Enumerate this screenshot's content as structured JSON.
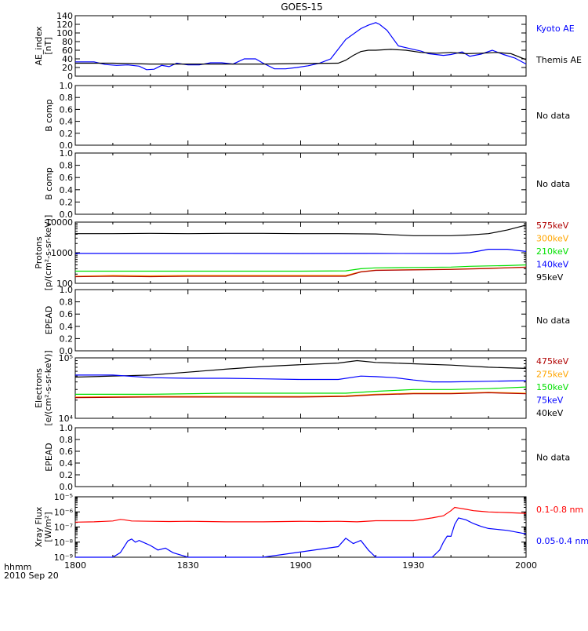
{
  "title": "GOES-15",
  "time_axis": {
    "ticks": [
      "1800",
      "1830",
      "1900",
      "1930",
      "2000"
    ],
    "corner_label_1": "hhmm",
    "corner_label_2": "2010 Sep 20"
  },
  "colors": {
    "black": "#000000",
    "blue": "#0000ff",
    "green": "#00e000",
    "orange": "#ffa500",
    "red": "#ff0000",
    "darkred": "#b00000"
  },
  "chart_data": [
    {
      "type": "line",
      "id": "ae",
      "ylabel_lines": [
        "AE_index",
        "[nT]"
      ],
      "yscale": "linear",
      "ylim": [
        0,
        140
      ],
      "yticks": [
        "0",
        "20",
        "40",
        "60",
        "80",
        "100",
        "120",
        "140"
      ],
      "ytick_values": [
        0,
        20,
        40,
        60,
        80,
        100,
        120,
        140
      ],
      "series": [
        {
          "name": "Kyoto AE",
          "color": "#0000ff",
          "x": [
            0,
            5,
            8,
            11,
            14,
            17,
            19,
            21,
            23,
            25,
            27,
            30,
            33,
            36,
            39,
            42,
            45,
            48,
            50,
            53,
            56,
            59,
            62,
            65,
            68,
            72,
            76,
            78,
            80,
            81,
            83,
            86,
            88,
            90,
            92,
            94,
            96,
            98,
            100,
            103,
            105,
            108,
            111,
            114,
            117,
            120
          ],
          "y": [
            33,
            33,
            27,
            25,
            26,
            23,
            15,
            16,
            25,
            22,
            30,
            26,
            26,
            31,
            31,
            28,
            40,
            40,
            30,
            17,
            17,
            20,
            24,
            30,
            40,
            85,
            110,
            118,
            124,
            120,
            106,
            70,
            66,
            62,
            58,
            52,
            50,
            48,
            50,
            56,
            46,
            51,
            60,
            50,
            42,
            28
          ]
        },
        {
          "name": "Themis AE",
          "color": "#000000",
          "x": [
            0,
            10,
            20,
            30,
            40,
            50,
            60,
            70,
            72,
            74,
            76,
            78,
            80,
            84,
            88,
            92,
            96,
            100,
            104,
            108,
            112,
            116,
            120
          ],
          "y": [
            30,
            30,
            28,
            28,
            28,
            28,
            29,
            30,
            37,
            48,
            57,
            60,
            60,
            62,
            60,
            55,
            53,
            55,
            52,
            53,
            55,
            52,
            38
          ]
        }
      ],
      "legend": [
        {
          "text": "Kyoto AE",
          "color": "#0000ff"
        },
        {
          "text": "Themis AE",
          "color": "#000000"
        }
      ]
    },
    {
      "type": "line",
      "id": "bcomp1",
      "ylabel_lines": [
        "B comp"
      ],
      "yscale": "linear",
      "ylim": [
        0,
        1
      ],
      "yticks": [
        "0.0",
        "0.2",
        "0.4",
        "0.6",
        "0.8",
        "1.0"
      ],
      "ytick_values": [
        0,
        0.2,
        0.4,
        0.6,
        0.8,
        1.0
      ],
      "series": [],
      "legend": [
        {
          "text": "No data",
          "color": "#000000"
        }
      ]
    },
    {
      "type": "line",
      "id": "bcomp2",
      "ylabel_lines": [
        "B comp"
      ],
      "yscale": "linear",
      "ylim": [
        0,
        1
      ],
      "yticks": [
        "0.0",
        "0.2",
        "0.4",
        "0.6",
        "0.8",
        "1.0"
      ],
      "ytick_values": [
        0,
        0.2,
        0.4,
        0.6,
        0.8,
        1.0
      ],
      "series": [],
      "legend": [
        {
          "text": "No data",
          "color": "#000000"
        }
      ]
    },
    {
      "type": "line",
      "id": "protons",
      "ylabel_lines": [
        "Protons",
        "[p/(cm²-s-sr-keV)]"
      ],
      "yscale": "log",
      "ylim": [
        100,
        10000
      ],
      "yticks": [
        "100",
        "1000",
        "10000"
      ],
      "ytick_values": [
        100,
        1000,
        10000
      ],
      "series": [
        {
          "name": "95keV",
          "color": "#000000",
          "x": [
            0,
            10,
            20,
            30,
            40,
            50,
            60,
            70,
            80,
            90,
            100,
            105,
            110,
            115,
            120
          ],
          "y": [
            4200,
            4200,
            4300,
            4200,
            4300,
            4300,
            4200,
            4200,
            4100,
            3600,
            3600,
            3800,
            4200,
            5500,
            8000
          ]
        },
        {
          "name": "140keV",
          "color": "#0000ff",
          "x": [
            0,
            20,
            40,
            60,
            80,
            100,
            105,
            110,
            115,
            120
          ],
          "y": [
            950,
            950,
            950,
            940,
            950,
            940,
            1000,
            1300,
            1300,
            1100
          ]
        },
        {
          "name": "210keV",
          "color": "#00e000",
          "x": [
            0,
            20,
            40,
            60,
            72,
            76,
            80,
            90,
            100,
            105,
            110,
            115,
            120
          ],
          "y": [
            250,
            250,
            250,
            250,
            255,
            300,
            320,
            330,
            340,
            360,
            370,
            380,
            400
          ]
        },
        {
          "name": "300keV",
          "color": "#ffa500",
          "x": [
            0,
            10,
            20,
            30,
            40,
            50,
            60,
            72,
            76,
            80,
            90,
            100,
            110,
            120
          ],
          "y": [
            170,
            180,
            175,
            180,
            180,
            180,
            180,
            180,
            240,
            270,
            280,
            290,
            310,
            340
          ]
        },
        {
          "name": "575keV",
          "color": "#b00000",
          "x": [
            0,
            10,
            20,
            30,
            40,
            50,
            60,
            72,
            76,
            80,
            90,
            100,
            110,
            120
          ],
          "y": [
            165,
            170,
            165,
            170,
            170,
            170,
            170,
            170,
            235,
            265,
            275,
            285,
            305,
            335
          ]
        }
      ],
      "legend": [
        {
          "text": "575keV",
          "color": "#b00000"
        },
        {
          "text": "300keV",
          "color": "#ffa500"
        },
        {
          "text": "210keV",
          "color": "#00e000"
        },
        {
          "text": "140keV",
          "color": "#0000ff"
        },
        {
          "text": "95keV",
          "color": "#000000"
        }
      ]
    },
    {
      "type": "line",
      "id": "epead1",
      "ylabel_lines": [
        "EPEAD"
      ],
      "yscale": "linear",
      "ylim": [
        0,
        1
      ],
      "yticks": [
        "0.0",
        "0.2",
        "0.4",
        "0.6",
        "0.8",
        "1.0"
      ],
      "ytick_values": [
        0,
        0.2,
        0.4,
        0.6,
        0.8,
        1.0
      ],
      "series": [],
      "legend": [
        {
          "text": "No data",
          "color": "#000000"
        }
      ]
    },
    {
      "type": "line",
      "id": "electrons",
      "ylabel_lines": [
        "Electrons",
        "[e/(cm²-s-sr-keV)]"
      ],
      "yscale": "log",
      "ylim": [
        10000,
        100000
      ],
      "yticks": [
        "10⁴",
        "10⁵"
      ],
      "ytick_values": [
        10000,
        100000
      ],
      "series": [
        {
          "name": "40keV",
          "color": "#000000",
          "x": [
            0,
            10,
            20,
            30,
            40,
            50,
            60,
            70,
            75,
            80,
            85,
            90,
            100,
            110,
            120
          ],
          "y": [
            48000,
            50000,
            52000,
            58000,
            65000,
            72000,
            77000,
            82000,
            90000,
            84000,
            82000,
            80000,
            76000,
            70000,
            67000
          ]
        },
        {
          "name": "75keV",
          "color": "#0000ff",
          "x": [
            0,
            10,
            20,
            30,
            40,
            50,
            60,
            70,
            76,
            80,
            85,
            90,
            95,
            100,
            110,
            120
          ],
          "y": [
            52000,
            52000,
            47000,
            46000,
            46000,
            45000,
            44000,
            44000,
            50000,
            49000,
            47000,
            43000,
            40000,
            40000,
            41000,
            42000
          ]
        },
        {
          "name": "150keV",
          "color": "#00e000",
          "x": [
            0,
            20,
            40,
            60,
            72,
            80,
            90,
            100,
            110,
            120
          ],
          "y": [
            25000,
            25000,
            26000,
            26000,
            26000,
            28000,
            30000,
            30000,
            31000,
            33000
          ]
        },
        {
          "name": "275keV",
          "color": "#ffa500",
          "x": [
            0,
            20,
            40,
            60,
            72,
            80,
            90,
            100,
            110,
            120
          ],
          "y": [
            22500,
            23000,
            23000,
            23000,
            23500,
            25000,
            26000,
            26000,
            27000,
            26000
          ]
        },
        {
          "name": "475keV",
          "color": "#b00000",
          "x": [
            0,
            20,
            40,
            60,
            72,
            80,
            90,
            100,
            110,
            120
          ],
          "y": [
            22000,
            22500,
            22500,
            22500,
            23000,
            24500,
            25500,
            25500,
            26500,
            25500
          ]
        }
      ],
      "legend": [
        {
          "text": "475keV",
          "color": "#b00000"
        },
        {
          "text": "275keV",
          "color": "#ffa500"
        },
        {
          "text": "150keV",
          "color": "#00e000"
        },
        {
          "text": "75keV",
          "color": "#0000ff"
        },
        {
          "text": "40keV",
          "color": "#000000"
        }
      ]
    },
    {
      "type": "line",
      "id": "epead2",
      "ylabel_lines": [
        "EPEAD"
      ],
      "yscale": "linear",
      "ylim": [
        0,
        1
      ],
      "yticks": [
        "0.0",
        "0.2",
        "0.4",
        "0.6",
        "0.8",
        "1.0"
      ],
      "ytick_values": [
        0,
        0.2,
        0.4,
        0.6,
        0.8,
        1.0
      ],
      "series": [],
      "legend": [
        {
          "text": "No data",
          "color": "#000000"
        }
      ]
    },
    {
      "type": "line",
      "id": "xray",
      "ylabel_lines": [
        "Xray Flux",
        "[W/m²]"
      ],
      "yscale": "log",
      "ylim": [
        1e-09,
        1e-05
      ],
      "yticks": [
        "10⁻⁹",
        "10⁻⁸",
        "10⁻⁷",
        "10⁻⁶",
        "10⁻⁵"
      ],
      "ytick_values": [
        1e-09,
        1e-08,
        1e-07,
        1e-06,
        1e-05
      ],
      "series": [
        {
          "name": "0.1-0.8 nm",
          "color": "#ff0000",
          "x": [
            0,
            5,
            10,
            12,
            13,
            15,
            20,
            25,
            30,
            35,
            40,
            50,
            60,
            65,
            70,
            75,
            80,
            90,
            95,
            98,
            100,
            101,
            102,
            104,
            106,
            108,
            110,
            115,
            120
          ],
          "y": [
            2.1e-07,
            2.2e-07,
            2.5e-07,
            3.2e-07,
            3e-07,
            2.5e-07,
            2.4e-07,
            2.3e-07,
            2.4e-07,
            2.3e-07,
            2.2e-07,
            2.2e-07,
            2.4e-07,
            2.3e-07,
            2.4e-07,
            2.2e-07,
            2.6e-07,
            2.6e-07,
            4e-07,
            5.5e-07,
            1.2e-06,
            2e-06,
            1.8e-06,
            1.5e-06,
            1.2e-06,
            1.1e-06,
            1e-06,
            9e-07,
            8e-07
          ]
        },
        {
          "name": "0.05-0.4 nm",
          "color": "#0000ff",
          "x": [
            0,
            10,
            12,
            14,
            15,
            16,
            17,
            18,
            20,
            22,
            24,
            26,
            30,
            35,
            40,
            50,
            70,
            72,
            74,
            76,
            78,
            80,
            95,
            97,
            98,
            99,
            100,
            101,
            102,
            104,
            106,
            108,
            110,
            115,
            120
          ],
          "y": [
            1e-09,
            1e-09,
            2e-09,
            1.2e-08,
            1.6e-08,
            1e-08,
            1.3e-08,
            1e-08,
            6e-09,
            3e-09,
            4e-09,
            2e-09,
            1e-09,
            1e-09,
            1e-09,
            1e-09,
            5e-09,
            1.8e-08,
            8e-09,
            1.3e-08,
            3e-09,
            1e-09,
            1e-09,
            3e-09,
            1e-08,
            2.5e-08,
            2.4e-08,
            1.5e-07,
            4e-07,
            3e-07,
            1.7e-07,
            1.1e-07,
            8e-08,
            6e-08,
            3.5e-08
          ]
        }
      ],
      "legend": [
        {
          "text": "0.1-0.8 nm",
          "color": "#ff0000"
        },
        {
          "text": "0.05-0.4 nm",
          "color": "#0000ff"
        }
      ]
    }
  ]
}
